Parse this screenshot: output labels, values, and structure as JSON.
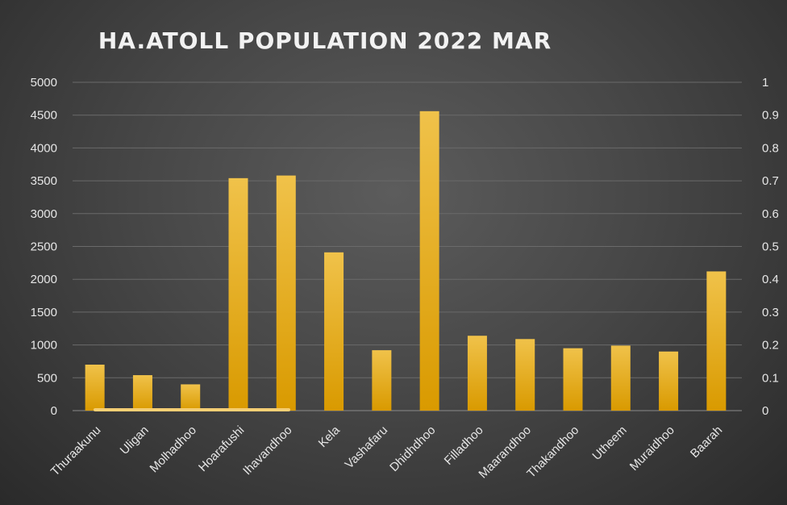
{
  "chart_data": {
    "type": "bar",
    "title": "HA.ATOLL POPULATION 2022 MAR",
    "categories": [
      "Thuraakunu",
      "Uligan",
      "Molhadhoo",
      "Hoarafushi",
      "Ihavandhoo",
      "Kela",
      "Vashafaru",
      "Dhidhdhoo",
      "Filladhoo",
      "Maarandhoo",
      "Thakandhoo",
      "Utheem",
      "Muraidhoo",
      "Baarah"
    ],
    "values": [
      700,
      540,
      400,
      3540,
      3580,
      2410,
      920,
      4560,
      1140,
      1090,
      950,
      990,
      900,
      2120
    ],
    "ylim": [
      0,
      5000
    ],
    "yticks": [
      "0",
      "500",
      "1000",
      "1500",
      "2000",
      "2500",
      "3000",
      "3500",
      "4000",
      "4500",
      "5000"
    ],
    "y2lim": [
      0,
      1
    ],
    "y2ticks": [
      "0",
      "0.1",
      "0.2",
      "0.3",
      "0.4",
      "0.5",
      "0.6",
      "0.7",
      "0.8",
      "0.9",
      "1"
    ],
    "grid": true,
    "legend": "none",
    "bar_color_top": "#f0c24a",
    "bar_color_bottom": "#d99a00",
    "highlight_color": "#f6cf74"
  }
}
